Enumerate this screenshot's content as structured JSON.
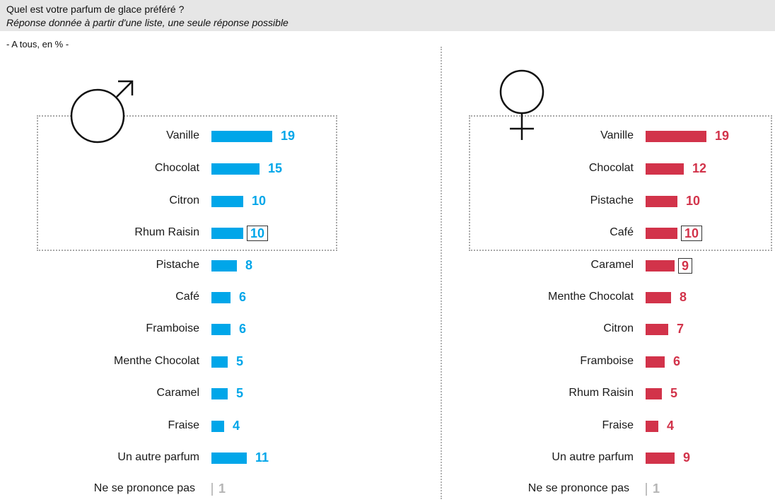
{
  "header": {
    "title": "Quel est votre parfum de glace préféré ?",
    "subtitle": "Réponse donnée à partir d'une liste, une seule réponse possible"
  },
  "base_note": "- A tous, en % -",
  "chart_data": [
    {
      "type": "bar",
      "orientation": "horizontal",
      "group": "male",
      "symbol_icon": "male-symbol-icon",
      "color": "#00a6e9",
      "categories": [
        "Vanille",
        "Chocolat",
        "Citron",
        "Rhum Raisin",
        "Pistache",
        "Café",
        "Framboise",
        "Menthe Chocolat",
        "Caramel",
        "Fraise",
        "Un autre parfum",
        "Ne se prononce pas"
      ],
      "values": [
        19,
        15,
        10,
        10,
        8,
        6,
        6,
        5,
        5,
        4,
        11,
        1
      ],
      "value_labels": [
        "19",
        "15",
        "10",
        "10",
        "8",
        "6",
        "6",
        "5",
        "5",
        "4",
        "11",
        "1"
      ],
      "top4_highlighted": true,
      "boxed_value_index": 3,
      "unit": "%"
    },
    {
      "type": "bar",
      "orientation": "horizontal",
      "group": "female",
      "symbol_icon": "female-symbol-icon",
      "color": "#d2334a",
      "categories": [
        "Vanille",
        "Chocolat",
        "Pistache",
        "Café",
        "Caramel",
        "Menthe Chocolat",
        "Citron",
        "Framboise",
        "Rhum Raisin",
        "Fraise",
        "Un autre parfum",
        "Ne se prononce pas"
      ],
      "values": [
        19,
        12,
        10,
        10,
        9,
        8,
        7,
        6,
        5,
        4,
        9,
        1
      ],
      "value_labels": [
        "19",
        "12",
        "10",
        "10",
        "9",
        "8",
        "7",
        "6",
        "5",
        "4",
        "9",
        "1"
      ],
      "top4_highlighted": true,
      "boxed_value_index": 3,
      "boxed_value_index_2": 4,
      "unit": "%"
    }
  ]
}
